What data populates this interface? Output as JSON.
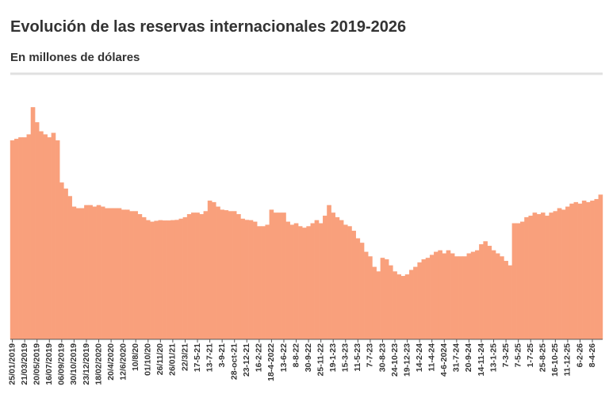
{
  "chart_data": {
    "type": "bar",
    "title": "Evolución de las reservas internacionales 2019-2026",
    "subtitle": "En millones de dólares",
    "color": "#f9a07c",
    "ylim": [
      0,
      80000
    ],
    "categories": [
      "25/01/2019",
      null,
      null,
      "21/03/2019",
      null,
      null,
      "20/05/2019",
      null,
      null,
      "16/07/2019",
      null,
      null,
      "06/09/2019",
      null,
      null,
      "30/10/2019",
      null,
      null,
      "23/12/2019",
      null,
      null,
      "18/02/2020",
      null,
      null,
      "20/4/2020",
      null,
      null,
      "12/6/2020",
      null,
      null,
      "10/8/20",
      null,
      null,
      "01/10/20",
      null,
      null,
      "26/11/20",
      null,
      null,
      "26/01/21",
      null,
      null,
      "22/3/21",
      null,
      null,
      "17-5-21",
      null,
      null,
      "13-7-21",
      null,
      null,
      "3-9-21",
      null,
      null,
      "28-oct-21",
      null,
      null,
      "23-12-21",
      null,
      null,
      "16-2-22",
      null,
      null,
      "18-4-2022",
      null,
      null,
      "13-6-22",
      null,
      null,
      "8-8-22",
      null,
      null,
      "30-9-22",
      null,
      null,
      "25-11-22",
      null,
      null,
      "19-1-23",
      null,
      null,
      "15-3-23",
      null,
      null,
      "11-5-23",
      null,
      null,
      "7-7-23",
      null,
      null,
      "30-8-23",
      null,
      null,
      "24-10-23",
      null,
      null,
      "19-12-23",
      null,
      null,
      "14-2-24",
      null,
      null,
      "11-4-24",
      null,
      null,
      "4-6-2024",
      null,
      null,
      "31-7-24",
      null,
      null,
      "20-9-24",
      null,
      null,
      "14-11-24",
      null,
      null,
      "13-1-25",
      null,
      null,
      "7-3-25",
      null,
      null,
      "7-5-25",
      null,
      null,
      "1-7-25",
      null,
      null,
      "25-8-25",
      null,
      null,
      "16-10-25",
      null,
      null,
      "11-12-25",
      null,
      null,
      "6-2-26",
      null,
      null,
      "8-4-26",
      null,
      null
    ],
    "values": [
      66000,
      66500,
      67000,
      67000,
      68000,
      77000,
      72000,
      69000,
      68000,
      67000,
      68500,
      66000,
      52000,
      50000,
      47500,
      44000,
      43500,
      43500,
      44500,
      44500,
      44000,
      44500,
      44000,
      43500,
      43500,
      43500,
      43500,
      43000,
      43000,
      42500,
      42500,
      41500,
      40500,
      39500,
      39000,
      39300,
      39500,
      39400,
      39400,
      39500,
      39600,
      40000,
      40500,
      41500,
      42000,
      42000,
      41500,
      42500,
      46000,
      45500,
      44000,
      43000,
      42800,
      42500,
      42500,
      41500,
      40000,
      39600,
      39500,
      39000,
      37500,
      37500,
      38000,
      43000,
      42000,
      42000,
      42000,
      39000,
      38000,
      38500,
      37500,
      37000,
      37500,
      38500,
      39500,
      38500,
      41000,
      44500,
      42000,
      40500,
      39500,
      38000,
      37500,
      36000,
      33500,
      32000,
      29000,
      27500,
      24000,
      22500,
      27000,
      26500,
      24500,
      22500,
      21500,
      21000,
      21500,
      23000,
      24000,
      25500,
      26500,
      27000,
      28000,
      29000,
      29500,
      28500,
      29500,
      28500,
      27500,
      27500,
      27500,
      28500,
      29000,
      29500,
      31500,
      32500,
      31000,
      29500,
      28500,
      27500,
      26000,
      24500,
      38500,
      38500,
      39000,
      40500,
      41000,
      42000,
      41500,
      42000,
      41000,
      42000,
      42500,
      43500,
      43000,
      44000,
      45000,
      45500,
      45000,
      46000,
      45500,
      46000,
      46500,
      48000
    ]
  }
}
